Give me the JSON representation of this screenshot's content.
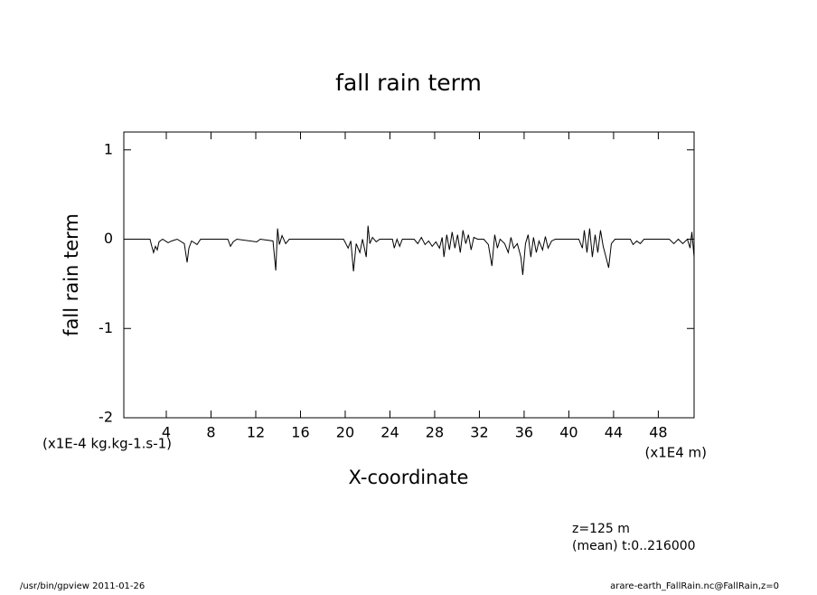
{
  "chart_data": {
    "type": "line",
    "title": "fall rain term",
    "y_label": "fall rain term",
    "x_label": "X-coordinate",
    "y_unit": "(x1E-4 kg.kg-1.s-1)",
    "x_unit": "(x1E4 m)",
    "annotations": [
      "z=125 m",
      "(mean) t:0..216000"
    ],
    "footer_left": "/usr/bin/gpview  2011-01-26",
    "footer_right": "arare-earth_FallRain.nc@FallRain,z=0",
    "color": "#000000",
    "xlim": [
      0.2,
      51.2
    ],
    "ylim": [
      -2,
      1.2
    ],
    "xticks": [
      4,
      8,
      12,
      16,
      20,
      24,
      28,
      32,
      36,
      40,
      44,
      48
    ],
    "yticks": [
      1,
      0,
      -1,
      -2
    ],
    "x": [
      0.2,
      2.54,
      2.7,
      2.86,
      3.03,
      3.19,
      3.35,
      3.67,
      4.16,
      4.48,
      4.97,
      5.61,
      5.86,
      6.02,
      6.26,
      6.75,
      7.07,
      9.5,
      9.74,
      9.98,
      10.31,
      12.09,
      12.41,
      13.54,
      13.79,
      13.95,
      14.11,
      14.35,
      14.68,
      15.0,
      19.85,
      20.26,
      20.5,
      20.74,
      20.98,
      21.31,
      21.55,
      21.88,
      22.04,
      22.2,
      22.44,
      22.77,
      23.09,
      24.22,
      24.39,
      24.63,
      24.87,
      25.11,
      26.16,
      26.49,
      26.81,
      27.14,
      27.46,
      27.78,
      28.11,
      28.43,
      28.67,
      28.83,
      29.08,
      29.32,
      29.56,
      29.81,
      30.05,
      30.29,
      30.53,
      30.78,
      31.02,
      31.26,
      31.5,
      31.83,
      32.39,
      32.8,
      33.12,
      33.37,
      33.61,
      33.85,
      34.26,
      34.58,
      34.82,
      35.07,
      35.39,
      35.71,
      35.88,
      36.12,
      36.36,
      36.6,
      36.84,
      37.09,
      37.33,
      37.65,
      37.9,
      38.14,
      38.46,
      38.79,
      40.89,
      41.21,
      41.38,
      41.62,
      41.86,
      42.1,
      42.35,
      42.59,
      42.83,
      43.07,
      43.32,
      43.56,
      43.8,
      44.13,
      45.5,
      45.74,
      46.07,
      46.39,
      46.72,
      48.98,
      49.39,
      49.79,
      50.19,
      50.6,
      50.84,
      51.0,
      51.2
    ],
    "values": [
      0,
      0,
      -0.08,
      -0.15,
      -0.08,
      -0.12,
      -0.03,
      0,
      -0.04,
      -0.02,
      0,
      -0.05,
      -0.26,
      -0.1,
      -0.02,
      -0.06,
      0,
      0,
      -0.08,
      -0.03,
      0,
      -0.03,
      0,
      -0.02,
      -0.35,
      0.12,
      -0.06,
      0.04,
      -0.05,
      0,
      0,
      -0.1,
      -0.02,
      -0.36,
      -0.05,
      -0.15,
      0,
      -0.2,
      0.15,
      -0.05,
      0.02,
      -0.03,
      0,
      0,
      -0.1,
      0,
      -0.08,
      0,
      0,
      -0.05,
      0.02,
      -0.06,
      -0.02,
      -0.08,
      -0.03,
      -0.1,
      0.02,
      -0.2,
      0.05,
      -0.12,
      0.08,
      -0.1,
      0.05,
      -0.15,
      0.1,
      -0.05,
      0.05,
      -0.12,
      0.02,
      0,
      0,
      -0.06,
      -0.3,
      0.05,
      -0.1,
      0,
      -0.05,
      -0.15,
      0.02,
      -0.1,
      -0.05,
      -0.2,
      -0.4,
      -0.05,
      0.05,
      -0.2,
      0.02,
      -0.15,
      -0.02,
      -0.12,
      0.03,
      -0.1,
      -0.02,
      0,
      0,
      -0.1,
      0.1,
      -0.15,
      0.12,
      -0.2,
      0.05,
      -0.15,
      0.1,
      -0.08,
      -0.2,
      -0.32,
      -0.05,
      0,
      0,
      -0.06,
      -0.02,
      -0.05,
      0,
      0,
      -0.05,
      0,
      -0.05,
      0,
      -0.1,
      0.08,
      -0.2
    ]
  }
}
